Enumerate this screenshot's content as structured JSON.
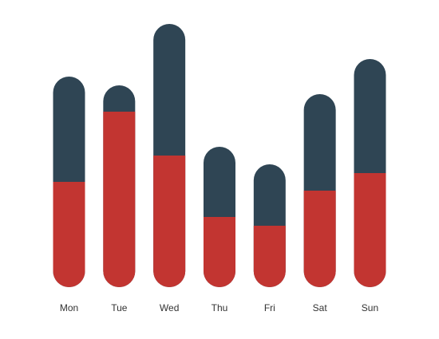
{
  "chart_data": {
    "type": "bar",
    "stacked": true,
    "categories": [
      "Mon",
      "Tue",
      "Wed",
      "Thu",
      "Fri",
      "Sat",
      "Sun"
    ],
    "series": [
      {
        "values": [
          120,
          200,
          150,
          80,
          70,
          110,
          130
        ]
      },
      {
        "values": [
          120,
          30,
          150,
          80,
          70,
          110,
          130
        ]
      }
    ],
    "ylim": [
      0,
      300
    ],
    "grid": false,
    "colors": [
      "#c23531",
      "#2f4554"
    ]
  }
}
